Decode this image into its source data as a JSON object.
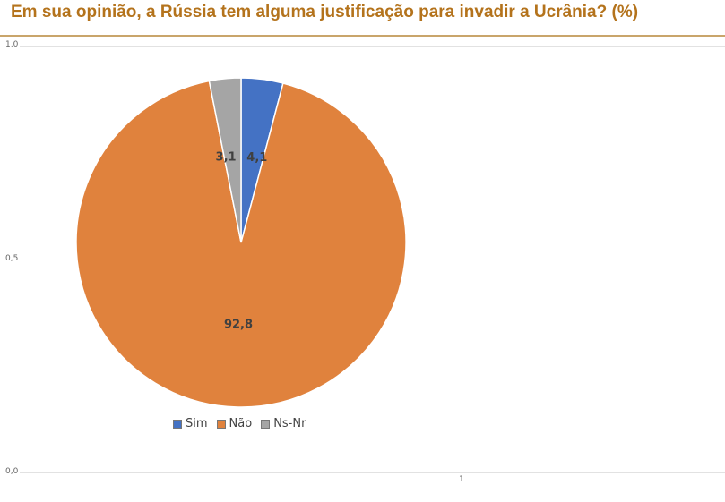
{
  "chart_data": {
    "type": "pie",
    "title": "Em sua opinião, a Rússia tem alguma justificação para invadir a Ucrânia? (%)",
    "categories": [
      "Sim",
      "Não",
      "Ns-Nr"
    ],
    "values": [
      4.1,
      92.8,
      3.1
    ],
    "value_labels": [
      "4,1",
      "92,8",
      "3,1"
    ],
    "colors": [
      "#4472c4",
      "#e0823d",
      "#a5a5a5"
    ],
    "y_ticks": [
      "1,0",
      "0,5",
      "0,0"
    ],
    "x_ticks": [
      "1"
    ],
    "legend_position": "bottom",
    "grid": true
  }
}
